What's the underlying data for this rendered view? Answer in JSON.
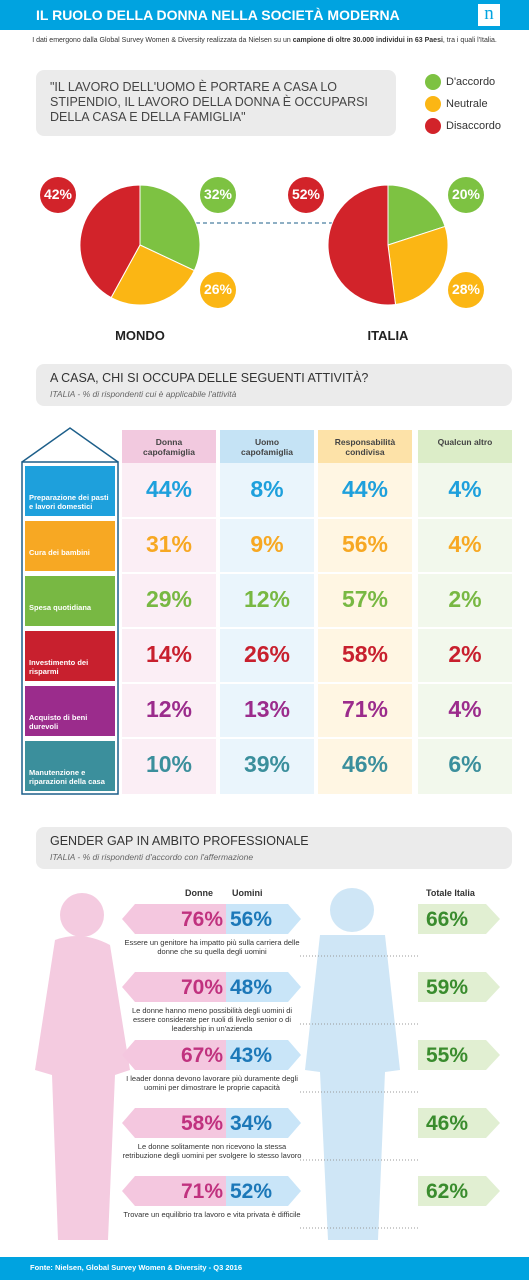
{
  "header": {
    "title": "IL RUOLO DELLA DONNA NELLA SOCIETÀ MODERNA",
    "logo": "n"
  },
  "intro": [
    "I dati emergono dalla Global Survey Women & Diversity realizzata da Nielsen su un ",
    "campione di oltre 30.000 individui in 63 Paesi",
    ", tra i quali l'Italia."
  ],
  "quote": "\"IL LAVORO DELL'UOMO È PORTARE A CASA LO STIPENDIO, IL LAVORO DELLA DONNA È OCCUPARSI DELLA CASA E DELLA FAMIGLIA\"",
  "legend": [
    {
      "name": "D'accordo",
      "color": "#7dc242"
    },
    {
      "name": "Neutrale",
      "color": "#fbb614"
    },
    {
      "name": "Disaccordo",
      "color": "#d2232a"
    }
  ],
  "pies": [
    {
      "label": "MONDO",
      "values": [
        32,
        26,
        42
      ],
      "value_labels": [
        "32%",
        "26%",
        "42%"
      ]
    },
    {
      "label": "ITALIA",
      "values": [
        20,
        28,
        52
      ],
      "value_labels": [
        "20%",
        "28%",
        "52%"
      ]
    }
  ],
  "household": {
    "title": "A CASA, CHI SI OCCUPA DELLE SEGUENTI ATTIVITÀ?",
    "subtitle": "ITALIA - % di rispondenti cui è applicabile l'attività",
    "columns": [
      {
        "name": "Donna capofamiglia",
        "color": "#f2c9df",
        "light": "#fbeef5"
      },
      {
        "name": "Uomo capofamiglia",
        "color": "#c5e3f5",
        "light": "#eaf5fc"
      },
      {
        "name": "Responsabilità condivisa",
        "color": "#fde2a8",
        "light": "#fff6e3"
      },
      {
        "name": "Qualcun altro",
        "color": "#dcedc8",
        "light": "#f2f8ec"
      }
    ],
    "rows": [
      {
        "label": "Preparazione dei pasti e lavori domestici",
        "color": "#1ea0dc",
        "values": [
          "44%",
          "8%",
          "44%",
          "4%"
        ]
      },
      {
        "label": "Cura dei bambini",
        "color": "#f7a823",
        "values": [
          "31%",
          "9%",
          "56%",
          "4%"
        ]
      },
      {
        "label": "Spesa quotidiana",
        "color": "#78b843",
        "values": [
          "29%",
          "12%",
          "57%",
          "2%"
        ]
      },
      {
        "label": "Investimento dei risparmi",
        "color": "#c8202e",
        "values": [
          "14%",
          "26%",
          "58%",
          "2%"
        ]
      },
      {
        "label": "Acquisto di beni durevoli",
        "color": "#9b2c8c",
        "values": [
          "12%",
          "13%",
          "71%",
          "4%"
        ]
      },
      {
        "label": "Manutenzione e riparazioni della casa",
        "color": "#3b8f9c",
        "values": [
          "10%",
          "39%",
          "46%",
          "6%"
        ]
      }
    ]
  },
  "gender_gap": {
    "title": "GENDER GAP IN AMBITO PROFESSIONALE",
    "subtitle": "ITALIA - % di rispondenti d'accordo con l'affermazione",
    "headers": [
      "Donne",
      "Uomini",
      "Totale Italia"
    ],
    "rows": [
      {
        "donne": "76%",
        "uomini": "56%",
        "totale": "66%",
        "text": "Essere un genitore ha impatto più sulla carriera delle donne che su quella degli uomini"
      },
      {
        "donne": "70%",
        "uomini": "48%",
        "totale": "59%",
        "text": "Le donne hanno meno possibilità degli uomini di essere considerate per ruoli di livello senior o di leadership in un'azienda"
      },
      {
        "donne": "67%",
        "uomini": "43%",
        "totale": "55%",
        "text": "I leader donna devono lavorare più duramente degli uomini per dimostrare le proprie capacità"
      },
      {
        "donne": "58%",
        "uomini": "34%",
        "totale": "46%",
        "text": "Le donne solitamente non ricevono la stessa retribuzione degli uomini per svolgere lo stesso lavoro"
      },
      {
        "donne": "71%",
        "uomini": "52%",
        "totale": "62%",
        "text": "Trovare un equilibrio tra lavoro e vita privata è difficile"
      }
    ]
  },
  "footer": "Fonte: Nielsen, Global Survey Women & Diversity - Q3 2016"
}
